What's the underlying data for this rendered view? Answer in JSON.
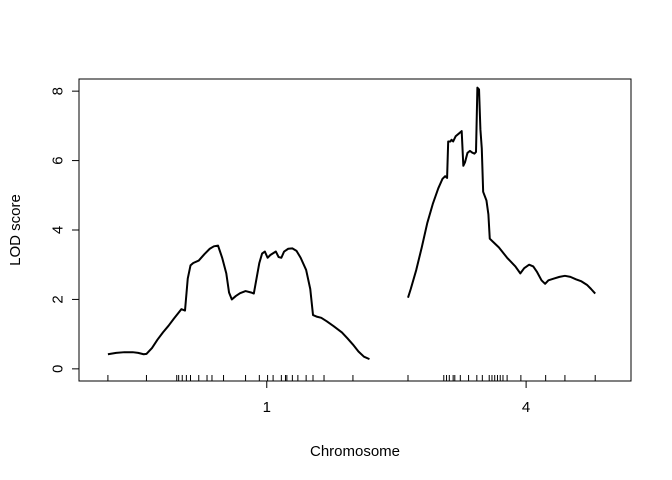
{
  "chart_data": {
    "type": "line",
    "title": "",
    "xlabel": "Chromosome",
    "ylabel": "LOD score",
    "ylim": [
      -0.35,
      8.35
    ],
    "yticks": [
      0,
      2,
      4,
      6,
      8
    ],
    "xlim": [
      0,
      200.5
    ],
    "grid": false,
    "legend": "none",
    "line_color": "#000000",
    "chromosomes": [
      {
        "name": "1",
        "label_pos": 57.7,
        "markers": [
          0,
          14,
          25,
          25.7,
          27,
          28.5,
          30,
          33,
          36,
          37.8,
          42,
          50,
          55,
          58,
          60,
          63,
          64.5,
          65,
          67,
          69,
          72,
          74.5,
          78.5,
          89
        ],
        "lod": [
          {
            "x": 0,
            "y": 0.42
          },
          {
            "x": 3,
            "y": 0.46
          },
          {
            "x": 6,
            "y": 0.48
          },
          {
            "x": 9,
            "y": 0.48
          },
          {
            "x": 11,
            "y": 0.46
          },
          {
            "x": 13,
            "y": 0.42
          },
          {
            "x": 14,
            "y": 0.43
          },
          {
            "x": 16,
            "y": 0.6
          },
          {
            "x": 18,
            "y": 0.84
          },
          {
            "x": 20,
            "y": 1.05
          },
          {
            "x": 22,
            "y": 1.24
          },
          {
            "x": 24,
            "y": 1.45
          },
          {
            "x": 25.7,
            "y": 1.62
          },
          {
            "x": 26.7,
            "y": 1.72
          },
          {
            "x": 28,
            "y": 1.68
          },
          {
            "x": 29,
            "y": 2.6
          },
          {
            "x": 30,
            "y": 2.98
          },
          {
            "x": 31,
            "y": 3.05
          },
          {
            "x": 33,
            "y": 3.12
          },
          {
            "x": 35,
            "y": 3.3
          },
          {
            "x": 37,
            "y": 3.46
          },
          {
            "x": 38.5,
            "y": 3.53
          },
          {
            "x": 40,
            "y": 3.55
          },
          {
            "x": 41.5,
            "y": 3.2
          },
          {
            "x": 43,
            "y": 2.75
          },
          {
            "x": 44,
            "y": 2.2
          },
          {
            "x": 45,
            "y": 2.0
          },
          {
            "x": 46.5,
            "y": 2.1
          },
          {
            "x": 48,
            "y": 2.18
          },
          {
            "x": 50,
            "y": 2.24
          },
          {
            "x": 52,
            "y": 2.2
          },
          {
            "x": 53,
            "y": 2.17
          },
          {
            "x": 55,
            "y": 3.05
          },
          {
            "x": 56,
            "y": 3.32
          },
          {
            "x": 57,
            "y": 3.38
          },
          {
            "x": 58,
            "y": 3.2
          },
          {
            "x": 59,
            "y": 3.28
          },
          {
            "x": 60,
            "y": 3.33
          },
          {
            "x": 61,
            "y": 3.38
          },
          {
            "x": 62,
            "y": 3.22
          },
          {
            "x": 63,
            "y": 3.2
          },
          {
            "x": 64,
            "y": 3.38
          },
          {
            "x": 65.5,
            "y": 3.46
          },
          {
            "x": 67,
            "y": 3.47
          },
          {
            "x": 68.5,
            "y": 3.4
          },
          {
            "x": 70,
            "y": 3.2
          },
          {
            "x": 72,
            "y": 2.85
          },
          {
            "x": 73.5,
            "y": 2.3
          },
          {
            "x": 74.5,
            "y": 1.55
          },
          {
            "x": 76,
            "y": 1.5
          },
          {
            "x": 77.5,
            "y": 1.47
          },
          {
            "x": 79.5,
            "y": 1.37
          },
          {
            "x": 82,
            "y": 1.23
          },
          {
            "x": 85,
            "y": 1.05
          },
          {
            "x": 87,
            "y": 0.88
          },
          {
            "x": 89,
            "y": 0.7
          },
          {
            "x": 91,
            "y": 0.5
          },
          {
            "x": 93,
            "y": 0.35
          },
          {
            "x": 95,
            "y": 0.28
          }
        ]
      },
      {
        "name": "4",
        "label_pos": 151.9,
        "markers": [
          109,
          122,
          123,
          124,
          125.4,
          126,
          128,
          131,
          134,
          136,
          138.5,
          139.5,
          140.5,
          141.5,
          142.5,
          143.5,
          145,
          150,
          159,
          166,
          177
        ],
        "lod": [
          {
            "x": 109,
            "y": 2.05
          },
          {
            "x": 110,
            "y": 2.3
          },
          {
            "x": 112,
            "y": 2.85
          },
          {
            "x": 114,
            "y": 3.5
          },
          {
            "x": 116,
            "y": 4.2
          },
          {
            "x": 118,
            "y": 4.75
          },
          {
            "x": 120,
            "y": 5.2
          },
          {
            "x": 121.5,
            "y": 5.47
          },
          {
            "x": 122.5,
            "y": 5.55
          },
          {
            "x": 123.2,
            "y": 5.5
          },
          {
            "x": 123.6,
            "y": 6.55
          },
          {
            "x": 124.4,
            "y": 6.55
          },
          {
            "x": 124.8,
            "y": 6.6
          },
          {
            "x": 125.4,
            "y": 6.55
          },
          {
            "x": 126.3,
            "y": 6.7
          },
          {
            "x": 127.8,
            "y": 6.8
          },
          {
            "x": 128.5,
            "y": 6.85
          },
          {
            "x": 129.1,
            "y": 5.85
          },
          {
            "x": 129.7,
            "y": 5.95
          },
          {
            "x": 130.6,
            "y": 6.22
          },
          {
            "x": 131.5,
            "y": 6.28
          },
          {
            "x": 132.3,
            "y": 6.23
          },
          {
            "x": 133.1,
            "y": 6.2
          },
          {
            "x": 133.7,
            "y": 6.25
          },
          {
            "x": 134.2,
            "y": 8.1
          },
          {
            "x": 134.8,
            "y": 8.05
          },
          {
            "x": 135.3,
            "y": 6.9
          },
          {
            "x": 135.8,
            "y": 6.35
          },
          {
            "x": 136.3,
            "y": 5.1
          },
          {
            "x": 137.5,
            "y": 4.85
          },
          {
            "x": 138.2,
            "y": 4.45
          },
          {
            "x": 138.7,
            "y": 3.75
          },
          {
            "x": 140,
            "y": 3.65
          },
          {
            "x": 142,
            "y": 3.5
          },
          {
            "x": 145,
            "y": 3.2
          },
          {
            "x": 148,
            "y": 2.95
          },
          {
            "x": 149.8,
            "y": 2.75
          },
          {
            "x": 151.2,
            "y": 2.9
          },
          {
            "x": 153,
            "y": 3.0
          },
          {
            "x": 154.5,
            "y": 2.95
          },
          {
            "x": 155.8,
            "y": 2.8
          },
          {
            "x": 157.5,
            "y": 2.55
          },
          {
            "x": 158.8,
            "y": 2.45
          },
          {
            "x": 160,
            "y": 2.55
          },
          {
            "x": 162,
            "y": 2.6
          },
          {
            "x": 164,
            "y": 2.65
          },
          {
            "x": 166,
            "y": 2.68
          },
          {
            "x": 168,
            "y": 2.65
          },
          {
            "x": 170,
            "y": 2.58
          },
          {
            "x": 172,
            "y": 2.52
          },
          {
            "x": 174,
            "y": 2.42
          },
          {
            "x": 175.5,
            "y": 2.3
          },
          {
            "x": 177,
            "y": 2.17
          }
        ]
      }
    ]
  }
}
